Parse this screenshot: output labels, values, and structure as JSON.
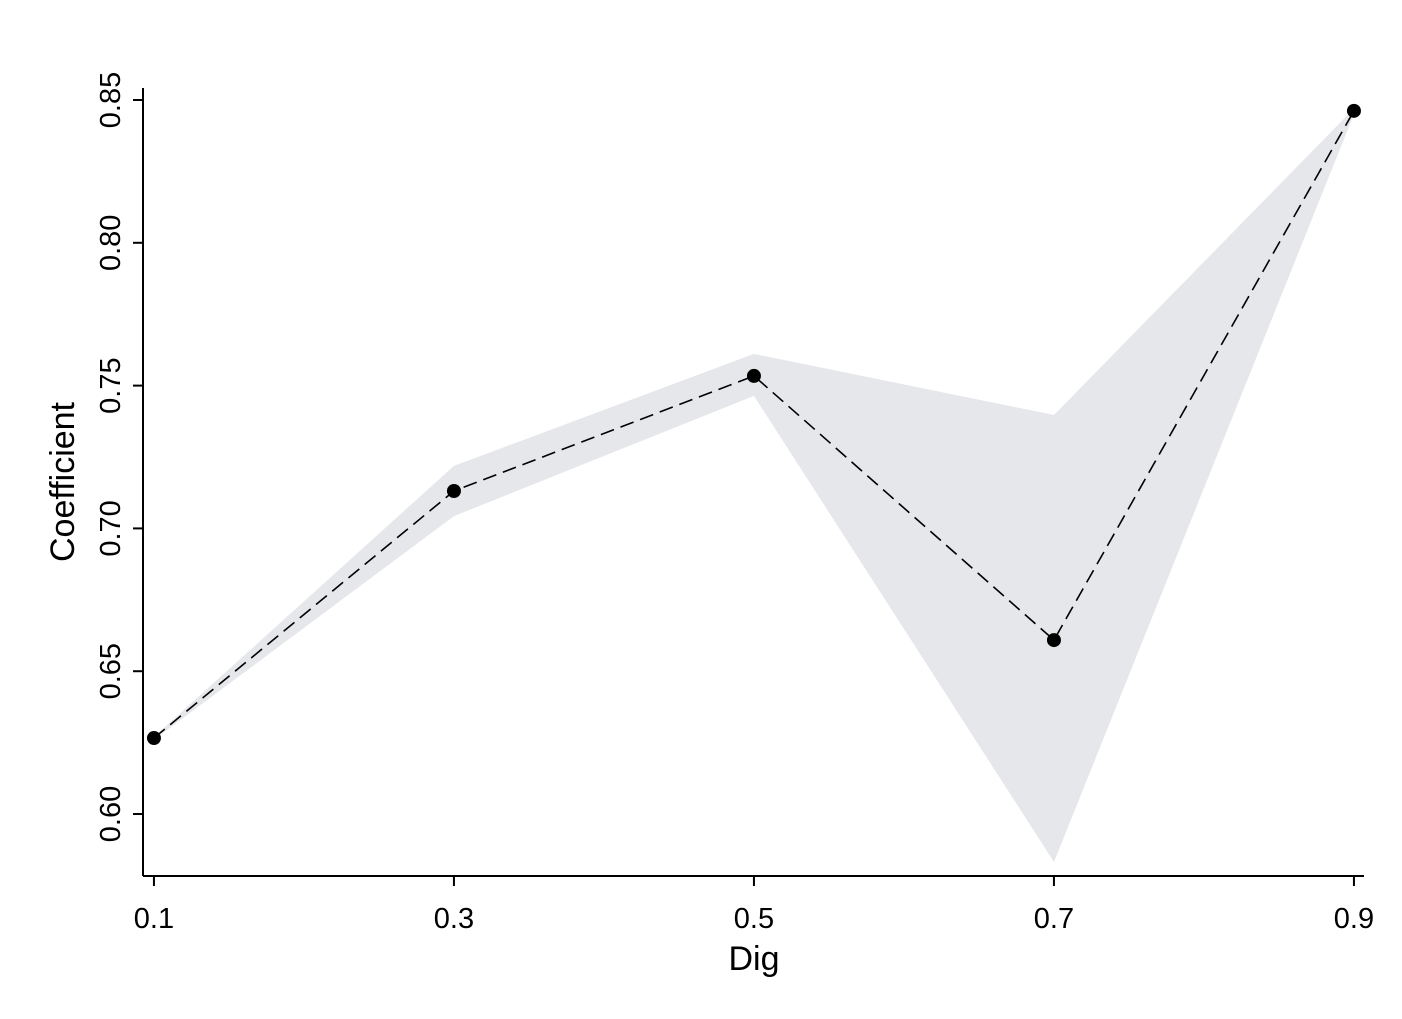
{
  "chart_data": {
    "type": "line",
    "x_label": "Dig",
    "y_label": "Coefficient",
    "x": [
      0.1,
      0.3,
      0.5,
      0.7,
      0.9
    ],
    "series": [
      {
        "values": [
          0.6266,
          0.7131,
          0.7534,
          0.6609,
          0.8462
        ],
        "color": "#000000",
        "dashed": true,
        "markers": true
      }
    ],
    "band": {
      "lower": [
        0.626,
        0.7043,
        0.7464,
        0.5832,
        0.845
      ],
      "upper": [
        0.627,
        0.7219,
        0.7611,
        0.7397,
        0.847
      ],
      "color": "#e6e7eb"
    },
    "xlim": [
      0.0927,
      0.9067
    ],
    "ylim": [
      0.5783,
      0.8542
    ],
    "xticks": [
      0.1,
      0.3,
      0.5,
      0.7,
      0.9
    ],
    "yticks": [
      {
        "value": 0.6,
        "label": "0.60"
      },
      0.65,
      {
        "value": 0.7,
        "label": "0.70"
      },
      0.75,
      {
        "value": 0.8,
        "label": "0.80"
      },
      0.85
    ],
    "grid": false
  }
}
